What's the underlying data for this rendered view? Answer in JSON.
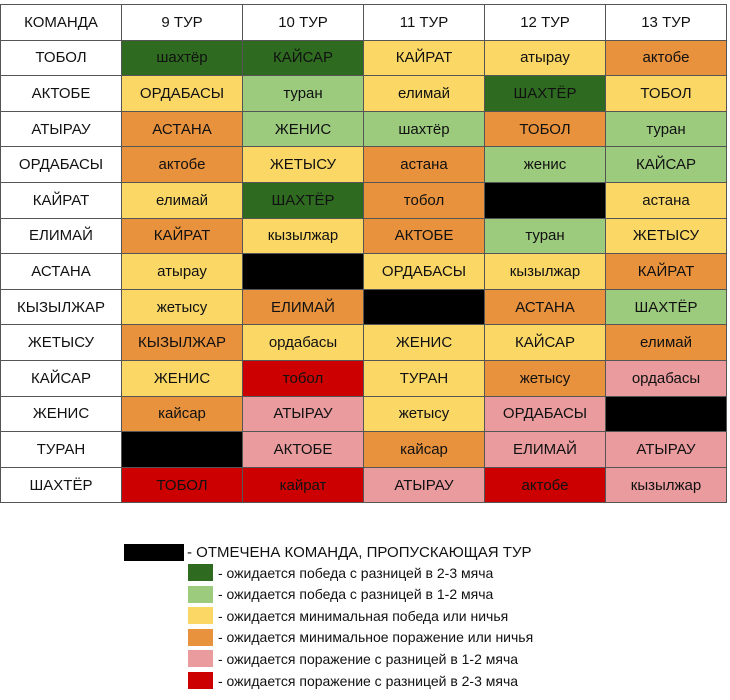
{
  "table": {
    "header": [
      "КОМАНДА",
      "9 ТУР",
      "10 ТУР",
      "11 ТУР",
      "12 ТУР",
      "13 ТУР"
    ],
    "rows": [
      {
        "team": "ТОБОЛ",
        "cells": [
          {
            "text": "шахтёр",
            "color": "dg"
          },
          {
            "text": "КАЙСАР",
            "color": "dg"
          },
          {
            "text": "КАЙРАТ",
            "color": "ye"
          },
          {
            "text": "атырау",
            "color": "ye"
          },
          {
            "text": "актобе",
            "color": "or"
          }
        ]
      },
      {
        "team": "АКТОБЕ",
        "cells": [
          {
            "text": "ОРДАБАСЫ",
            "color": "ye"
          },
          {
            "text": "туран",
            "color": "lg"
          },
          {
            "text": "елимай",
            "color": "ye"
          },
          {
            "text": "ШАХТЁР",
            "color": "dg"
          },
          {
            "text": "ТОБОЛ",
            "color": "ye"
          }
        ]
      },
      {
        "team": "АТЫРАУ",
        "cells": [
          {
            "text": "АСТАНА",
            "color": "or"
          },
          {
            "text": "ЖЕНИС",
            "color": "lg"
          },
          {
            "text": "шахтёр",
            "color": "lg"
          },
          {
            "text": "ТОБОЛ",
            "color": "or"
          },
          {
            "text": "туран",
            "color": "lg"
          }
        ]
      },
      {
        "team": "ОРДАБАСЫ",
        "cells": [
          {
            "text": "актобе",
            "color": "or"
          },
          {
            "text": "ЖЕТЫСУ",
            "color": "ye"
          },
          {
            "text": "астана",
            "color": "or"
          },
          {
            "text": "женис",
            "color": "lg"
          },
          {
            "text": "КАЙСАР",
            "color": "lg"
          }
        ]
      },
      {
        "team": "КАЙРАТ",
        "cells": [
          {
            "text": "елимай",
            "color": "ye"
          },
          {
            "text": "ШАХТЁР",
            "color": "dg"
          },
          {
            "text": "тобол",
            "color": "or"
          },
          {
            "text": "",
            "color": "bk"
          },
          {
            "text": "астана",
            "color": "ye"
          }
        ]
      },
      {
        "team": "ЕЛИМАЙ",
        "cells": [
          {
            "text": "КАЙРАТ",
            "color": "or"
          },
          {
            "text": "кызылжар",
            "color": "ye"
          },
          {
            "text": "АКТОБЕ",
            "color": "or"
          },
          {
            "text": "туран",
            "color": "lg"
          },
          {
            "text": "ЖЕТЫСУ",
            "color": "ye"
          }
        ]
      },
      {
        "team": "АСТАНА",
        "cells": [
          {
            "text": "атырау",
            "color": "ye"
          },
          {
            "text": "",
            "color": "bk"
          },
          {
            "text": "ОРДАБАСЫ",
            "color": "ye"
          },
          {
            "text": "кызылжар",
            "color": "ye"
          },
          {
            "text": "КАЙРАТ",
            "color": "or"
          }
        ]
      },
      {
        "team": "КЫЗЫЛЖАР",
        "cells": [
          {
            "text": "жетысу",
            "color": "ye"
          },
          {
            "text": "ЕЛИМАЙ",
            "color": "or"
          },
          {
            "text": "",
            "color": "bk"
          },
          {
            "text": "АСТАНА",
            "color": "or"
          },
          {
            "text": "ШАХТЁР",
            "color": "lg"
          }
        ]
      },
      {
        "team": "ЖЕТЫСУ",
        "cells": [
          {
            "text": "КЫЗЫЛЖАР",
            "color": "or"
          },
          {
            "text": "ордабасы",
            "color": "ye"
          },
          {
            "text": "ЖЕНИС",
            "color": "ye"
          },
          {
            "text": "КАЙСАР",
            "color": "ye"
          },
          {
            "text": "елимай",
            "color": "or"
          }
        ]
      },
      {
        "team": "КАЙСАР",
        "cells": [
          {
            "text": "ЖЕНИС",
            "color": "ye"
          },
          {
            "text": "тобол",
            "color": "rd"
          },
          {
            "text": "ТУРАН",
            "color": "ye"
          },
          {
            "text": "жетысу",
            "color": "or"
          },
          {
            "text": "ордабасы",
            "color": "pk"
          }
        ]
      },
      {
        "team": "ЖЕНИС",
        "cells": [
          {
            "text": "кайсар",
            "color": "or"
          },
          {
            "text": "АТЫРАУ",
            "color": "pk"
          },
          {
            "text": "жетысу",
            "color": "ye"
          },
          {
            "text": "ОРДАБАСЫ",
            "color": "pk"
          },
          {
            "text": "",
            "color": "bk"
          }
        ]
      },
      {
        "team": "ТУРАН",
        "cells": [
          {
            "text": "",
            "color": "bk"
          },
          {
            "text": "АКТОБЕ",
            "color": "pk"
          },
          {
            "text": "кайсар",
            "color": "or"
          },
          {
            "text": "ЕЛИМАЙ",
            "color": "pk"
          },
          {
            "text": "АТЫРАУ",
            "color": "pk"
          }
        ]
      },
      {
        "team": "ШАХТЁР",
        "cells": [
          {
            "text": "ТОБОЛ",
            "color": "rd"
          },
          {
            "text": "кайрат",
            "color": "rd"
          },
          {
            "text": "АТЫРАУ",
            "color": "pk"
          },
          {
            "text": "актобе",
            "color": "rd"
          },
          {
            "text": "кызылжар",
            "color": "pk"
          }
        ]
      }
    ]
  },
  "legend": [
    {
      "color": "bk",
      "text": "- ОТМЕЧЕНА КОМАНДА, ПРОПУСКАЮЩАЯ ТУР"
    },
    {
      "color": "dg",
      "text": "- ожидается победа с разницей в 2-3 мяча"
    },
    {
      "color": "lg",
      "text": "- ожидается победа с разницей в 1-2 мяча"
    },
    {
      "color": "ye",
      "text": "- ожидается минимальная победа или ничья"
    },
    {
      "color": "or",
      "text": "- ожидается минимальное поражение или ничья"
    },
    {
      "color": "pk",
      "text": "- ожидается поражение с разницей в 1-2 мяча"
    },
    {
      "color": "rd",
      "text": "- ожидается поражение с разницей в 2-3 мяча"
    }
  ],
  "colors": {
    "dg": "#2e6b20",
    "lg": "#9ccb7e",
    "ye": "#fbd866",
    "or": "#e8923d",
    "pk": "#e99b9e",
    "rd": "#cc0000",
    "bk": "#000000"
  }
}
